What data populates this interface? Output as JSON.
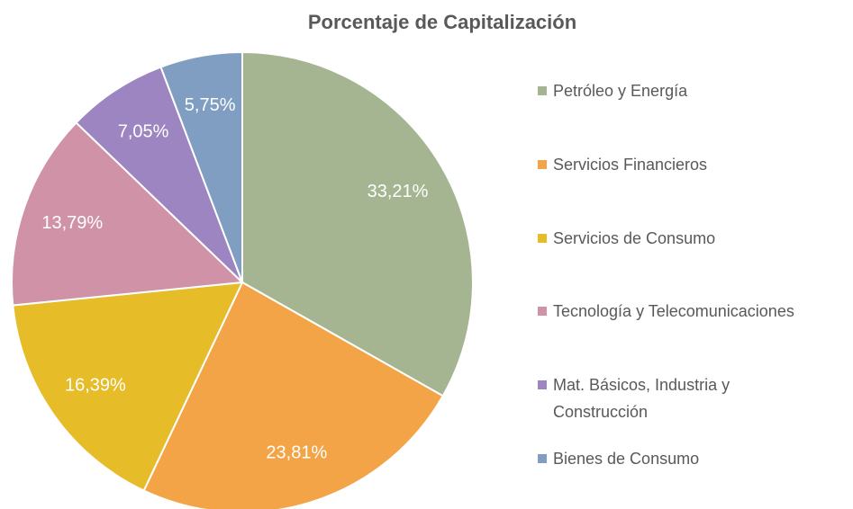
{
  "chart_data": {
    "type": "pie",
    "title": "Porcentaje de Capitalización",
    "categories": [
      "Petróleo y Energía",
      "Servicios Financieros",
      "Servicios de Consumo",
      "Tecnología y Telecomunicaciones",
      "Mat. Básicos, Industria y Construcción",
      "Bienes de Consumo"
    ],
    "values": [
      33.21,
      23.81,
      16.39,
      13.79,
      7.05,
      5.75
    ],
    "value_labels": [
      "33,21%",
      "23,81%",
      "16,39%",
      "13,79%",
      "7,05%",
      "5,75%"
    ],
    "colors": [
      "#a5b592",
      "#f3a447",
      "#e7bc29",
      "#d092a7",
      "#9c85c0",
      "#809ec2"
    ],
    "legend": "right"
  }
}
